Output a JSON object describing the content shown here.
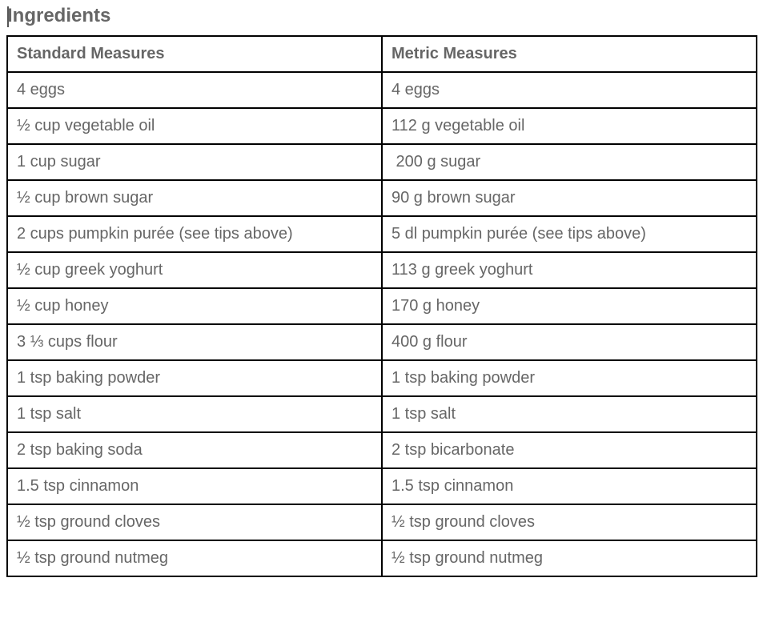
{
  "heading": "Ingredients",
  "table": {
    "headers": [
      "Standard Measures",
      "Metric Measures"
    ],
    "rows": [
      [
        "4 eggs",
        "4 eggs"
      ],
      [
        "½ cup vegetable oil",
        "112 g vegetable oil"
      ],
      [
        "1 cup sugar",
        " 200 g sugar"
      ],
      [
        "½ cup brown sugar",
        "90 g brown sugar"
      ],
      [
        "2 cups pumpkin purée (see tips above)",
        "5 dl pumpkin purée (see tips above)"
      ],
      [
        "½ cup greek yoghurt",
        "113 g greek yoghurt"
      ],
      [
        "½ cup honey",
        "170 g honey"
      ],
      [
        "3 ⅓ cups flour",
        "400 g flour"
      ],
      [
        "1 tsp baking powder",
        "1 tsp baking powder"
      ],
      [
        "1 tsp salt",
        "1 tsp salt"
      ],
      [
        "2 tsp baking soda",
        "2 tsp bicarbonate"
      ],
      [
        "1.5 tsp cinnamon",
        "1.5 tsp cinnamon"
      ],
      [
        "½ tsp ground cloves",
        "½ tsp ground cloves"
      ],
      [
        "½ tsp ground nutmeg",
        "½ tsp ground nutmeg"
      ]
    ]
  }
}
